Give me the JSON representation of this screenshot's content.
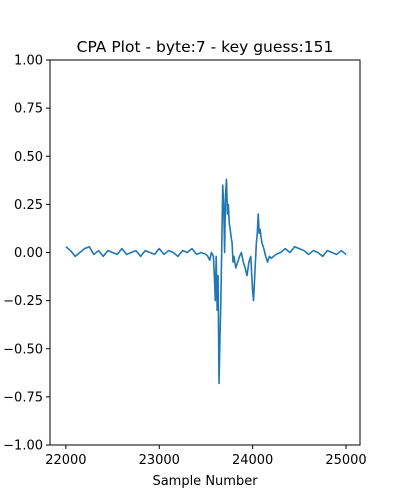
{
  "chart_data": {
    "type": "line",
    "title": "CPA Plot - byte:7 - key guess:151",
    "xlabel": "Sample Number",
    "ylabel": "",
    "xlim": [
      21830,
      25150
    ],
    "ylim": [
      -1.0,
      1.0
    ],
    "xticks": [
      22000,
      23000,
      24000,
      25000
    ],
    "yticks": [
      -1.0,
      -0.75,
      -0.5,
      -0.25,
      0.0,
      0.25,
      0.5,
      0.75,
      1.0
    ],
    "ytick_labels": [
      "−1.00",
      "−0.75",
      "−0.50",
      "−0.25",
      "0.00",
      "0.25",
      "0.50",
      "0.75",
      "1.00"
    ],
    "xtick_labels": [
      "22000",
      "23000",
      "24000",
      "25000"
    ],
    "grid": false,
    "legend": "none",
    "series": [
      {
        "color": "#1f77b4",
        "x": [
          22000,
          22050,
          22100,
          22150,
          22200,
          22250,
          22300,
          22350,
          22400,
          22450,
          22500,
          22550,
          22600,
          22650,
          22700,
          22750,
          22800,
          22850,
          22900,
          22950,
          23000,
          23050,
          23100,
          23150,
          23200,
          23250,
          23300,
          23350,
          23400,
          23450,
          23500,
          23520,
          23540,
          23560,
          23580,
          23590,
          23600,
          23610,
          23620,
          23630,
          23640,
          23650,
          23660,
          23670,
          23680,
          23690,
          23700,
          23710,
          23720,
          23730,
          23740,
          23750,
          23760,
          23770,
          23780,
          23790,
          23800,
          23820,
          23840,
          23860,
          23880,
          23900,
          23920,
          23940,
          23960,
          23980,
          24000,
          24010,
          24020,
          24030,
          24040,
          24050,
          24060,
          24070,
          24080,
          24090,
          24100,
          24120,
          24140,
          24160,
          24180,
          24200,
          24250,
          24300,
          24350,
          24400,
          24450,
          24500,
          24550,
          24600,
          24650,
          24700,
          24750,
          24800,
          24850,
          24900,
          24950,
          25000
        ],
        "y": [
          0.03,
          0.01,
          -0.02,
          0.0,
          0.02,
          0.03,
          -0.01,
          0.01,
          -0.02,
          0.01,
          0.0,
          -0.01,
          0.02,
          -0.01,
          0.0,
          0.01,
          -0.02,
          0.01,
          0.0,
          -0.01,
          0.02,
          -0.01,
          0.01,
          0.0,
          -0.02,
          0.01,
          0.0,
          0.02,
          -0.01,
          0.0,
          -0.01,
          -0.02,
          -0.04,
          0.0,
          -0.02,
          -0.12,
          -0.25,
          -0.02,
          -0.3,
          -0.12,
          -0.68,
          -0.45,
          -0.25,
          0.05,
          0.35,
          0.25,
          0.0,
          0.3,
          0.38,
          0.2,
          0.25,
          0.15,
          0.12,
          0.08,
          0.05,
          -0.05,
          -0.02,
          -0.08,
          -0.05,
          -0.02,
          0.0,
          -0.05,
          -0.08,
          -0.12,
          -0.05,
          -0.02,
          -0.2,
          -0.25,
          -0.15,
          -0.05,
          0.05,
          0.1,
          0.2,
          0.1,
          0.12,
          0.08,
          0.05,
          0.02,
          -0.02,
          -0.05,
          -0.02,
          -0.03,
          -0.01,
          0.0,
          0.02,
          0.0,
          0.03,
          0.02,
          0.01,
          -0.01,
          0.01,
          0.0,
          -0.02,
          0.01,
          0.0,
          -0.01,
          0.01,
          -0.01
        ]
      }
    ]
  }
}
